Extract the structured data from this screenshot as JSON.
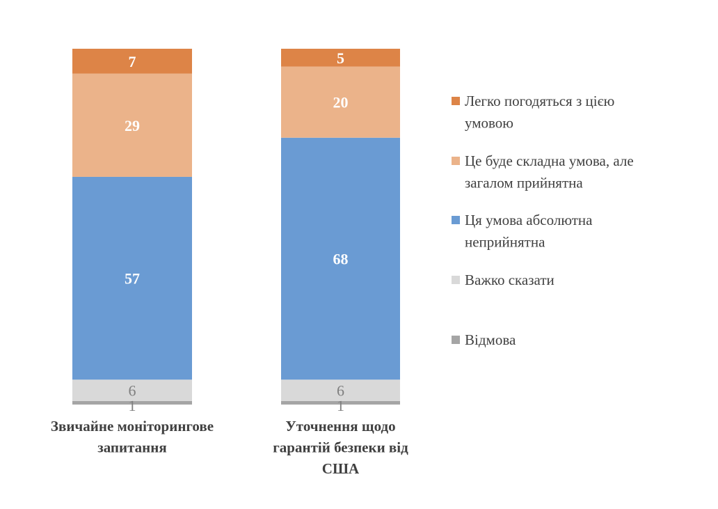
{
  "chart_data": {
    "type": "bar",
    "stacked": true,
    "title": "",
    "xlabel": "",
    "ylabel": "",
    "ylim": [
      0,
      100
    ],
    "grid": false,
    "legend_position": "right",
    "categories": [
      [
        "Звичайне моніторингове",
        "запитання"
      ],
      [
        "Уточнення щодо",
        "гарантій безпеки від",
        "США"
      ]
    ],
    "series": [
      {
        "name": [
          "Відмова"
        ],
        "color": "#a5a5a5",
        "values": [
          1,
          1
        ],
        "label_color": "#7f7f7f"
      },
      {
        "name": [
          "Важко сказати"
        ],
        "color": "#d9d9d9",
        "values": [
          6,
          6
        ],
        "label_color": "#7f7f7f"
      },
      {
        "name": [
          "Ця умова абсолютна",
          "неприйнятна"
        ],
        "color": "#6a9bd3",
        "values": [
          57,
          68
        ],
        "label_color": "#ffffff"
      },
      {
        "name": [
          "Це буде складна умова, але",
          "загалом прийнятна"
        ],
        "color": "#ebb38a",
        "values": [
          29,
          20
        ],
        "label_color": "#ffffff"
      },
      {
        "name": [
          "Легко погодяться з цією",
          "умовою"
        ],
        "color": "#dd8447",
        "values": [
          7,
          5
        ],
        "label_color": "#ffffff"
      }
    ]
  }
}
